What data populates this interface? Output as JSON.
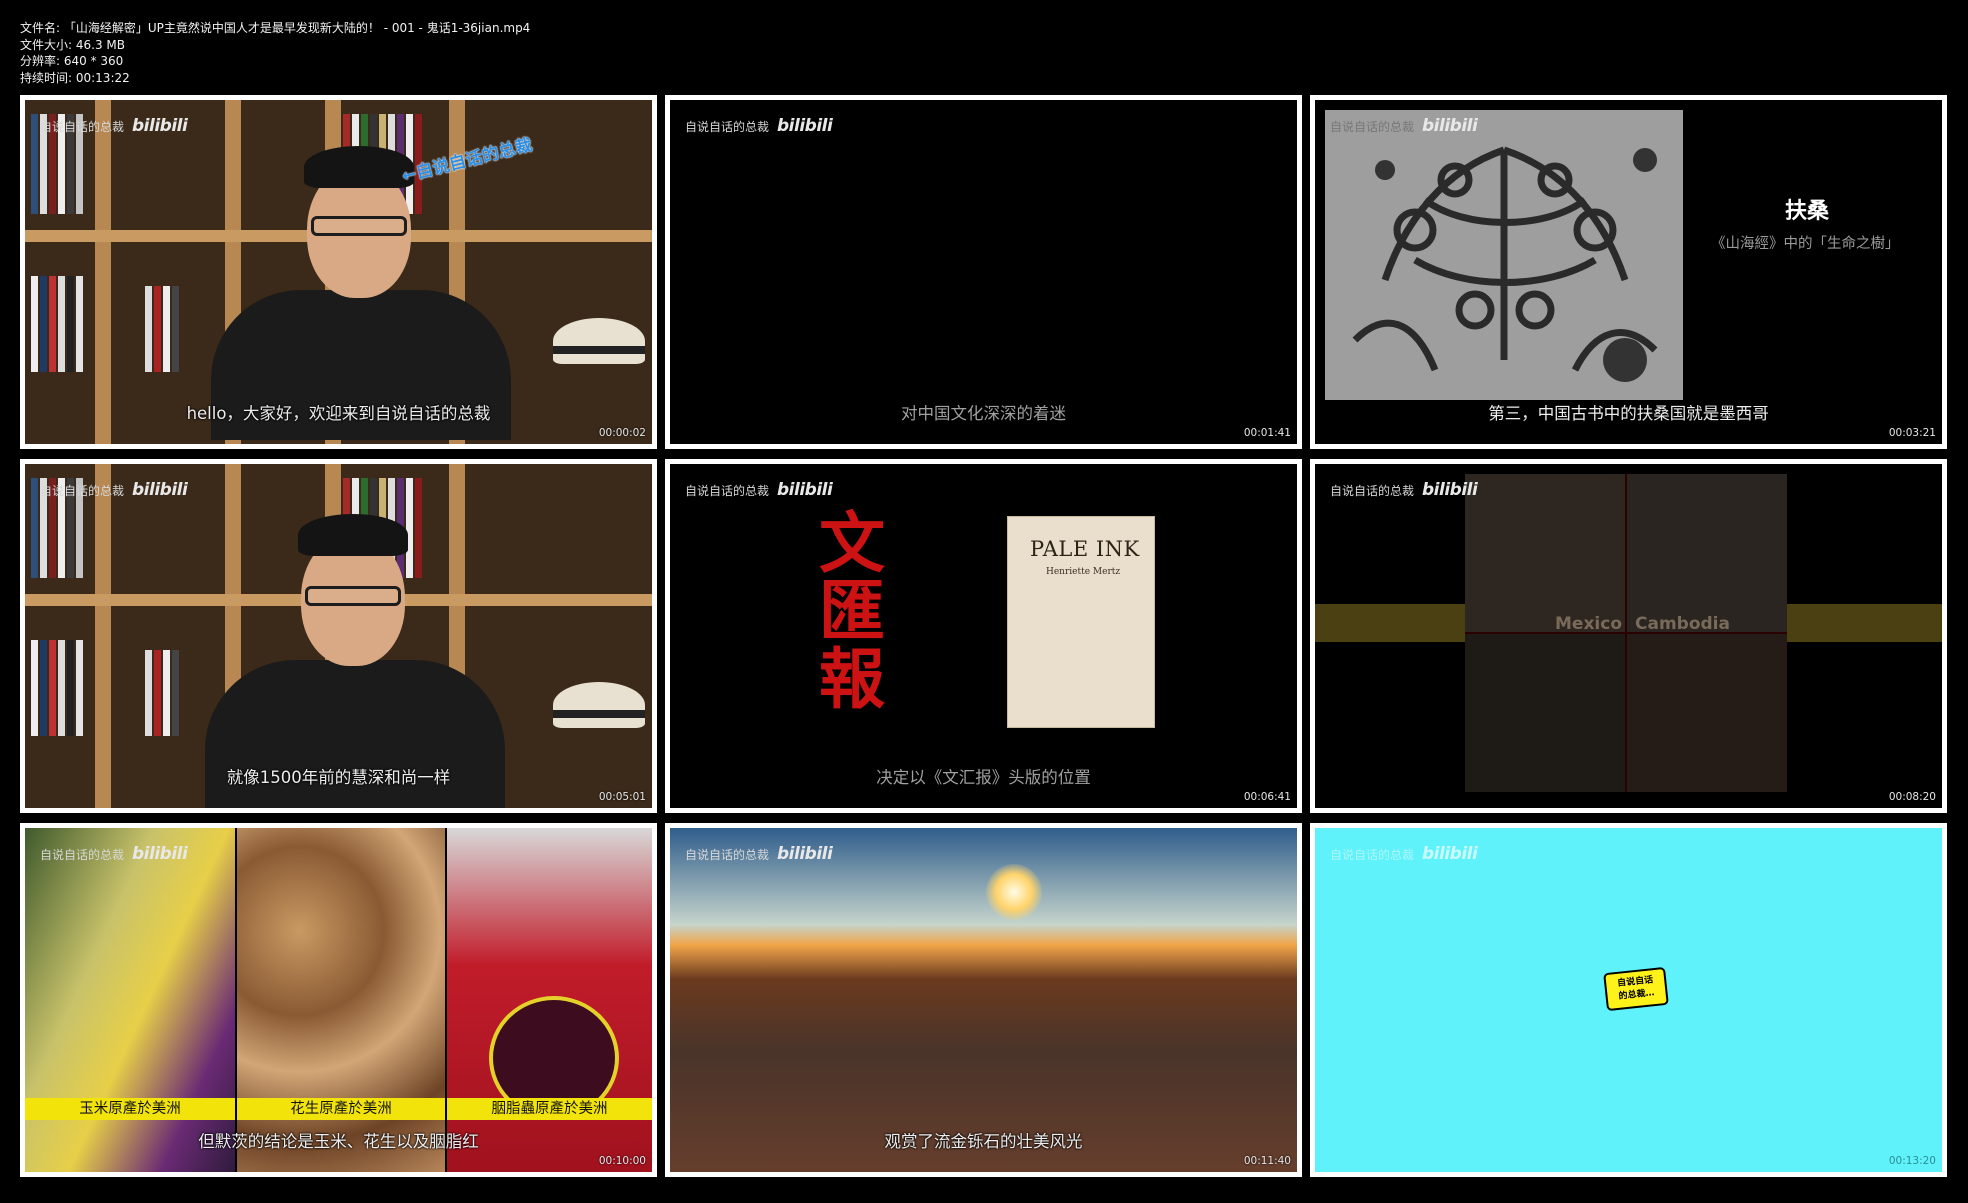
{
  "meta": {
    "filename": "文件名: 「山海经解密」UP主竟然说中国人才是最早发现新大陆的！ - 001 - 鬼话1-36jian.mp4",
    "filesize": "文件大小: 46.3 MB",
    "resolution": "分辨率: 640 * 360",
    "duration": "持续时间: 00:13:22"
  },
  "watermark": {
    "channel": "自说自话的总裁",
    "logo": "bilibili"
  },
  "frames": [
    {
      "subtitle": "hello，大家好，欢迎来到自说自话的总裁",
      "timestamp": "00:00:02",
      "tag": "←自说自话的总裁"
    },
    {
      "subtitle": "对中国文化深深的着迷",
      "timestamp": "00:01:41"
    },
    {
      "subtitle": "第三，中国古书中的扶桑国就是墨西哥",
      "timestamp": "00:03:21",
      "title": "扶桑",
      "caption": "《山海經》中的「生命之樹」"
    },
    {
      "subtitle": "就像1500年前的慧深和尚一样",
      "timestamp": "00:05:01"
    },
    {
      "subtitle": "决定以《文汇报》头版的位置",
      "timestamp": "00:06:41",
      "wenhui": [
        "文",
        "匯",
        "報"
      ],
      "book_title": "PALE INK",
      "book_author": "Henriette Mertz"
    },
    {
      "subtitle": "",
      "timestamp": "00:08:20",
      "label_left": "Mexico",
      "label_right": "Cambodia"
    },
    {
      "subtitle": "但默茨的结论是玉米、花生以及胭脂红",
      "timestamp": "00:10:00",
      "labels": [
        "玉米原產於美洲",
        "花生原產於美洲",
        "胭脂蟲原產於美洲"
      ]
    },
    {
      "subtitle": "观赏了流金铄石的壮美风光",
      "timestamp": "00:11:40"
    },
    {
      "subtitle": "",
      "timestamp": "00:13:20",
      "bubble": [
        "自说自话",
        "的总裁…"
      ]
    }
  ]
}
